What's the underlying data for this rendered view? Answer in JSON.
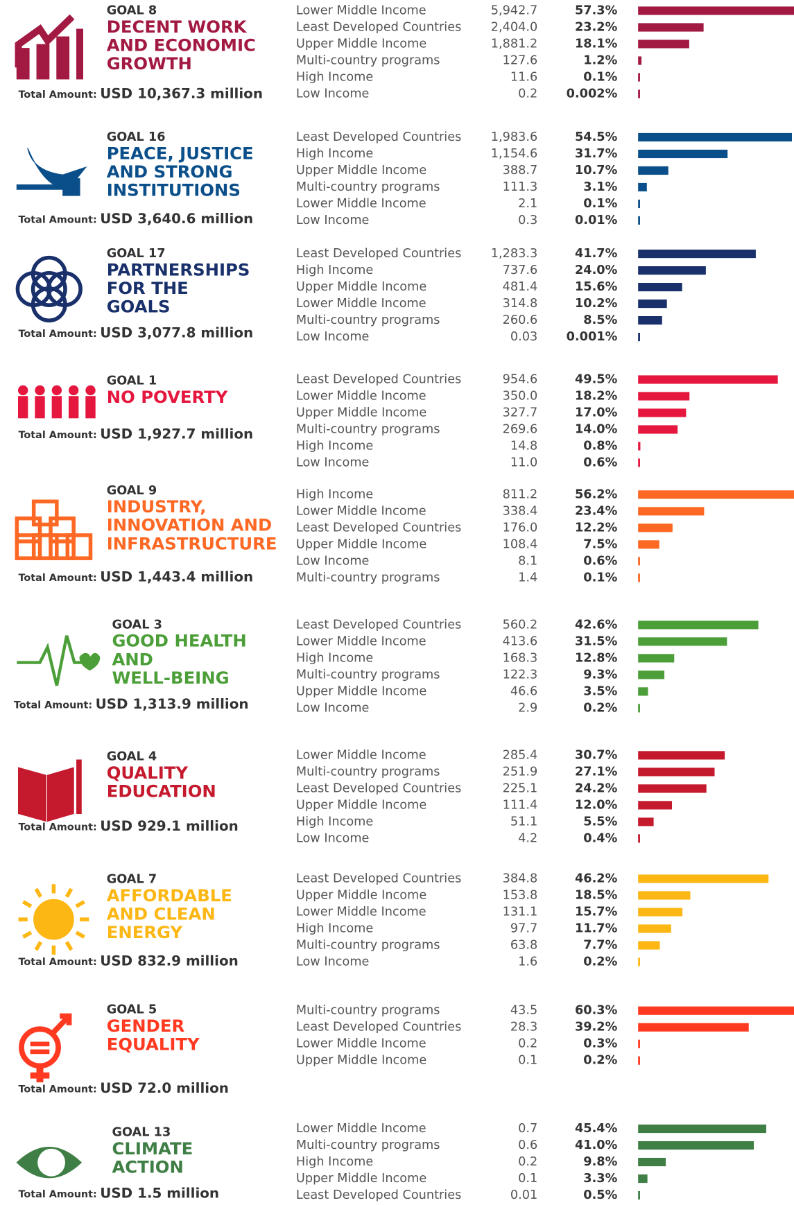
{
  "chart_data": [
    {
      "type": "bar",
      "goal": "GOAL 8",
      "title": [
        "DECENT WORK",
        "AND ECONOMIC",
        "GROWTH"
      ],
      "total_label": "Total Amount:",
      "total": "USD 10,367.3 million",
      "color": "#a21942",
      "xlim": [
        0,
        100
      ],
      "categories": [
        "Lower Middle Income",
        "Least Developed Countries",
        "Upper Middle Income",
        "Multi-country programs",
        "High Income",
        "Low Income"
      ],
      "amounts": [
        "5,942.7",
        "2,404.0",
        "1,881.2",
        "127.6",
        "11.6",
        "0.2"
      ],
      "values": [
        57.3,
        23.2,
        18.1,
        1.2,
        0.1,
        0.002
      ],
      "value_labels": [
        "57.3%",
        "23.2%",
        "18.1%",
        "1.2%",
        "0.1%",
        "0.002%"
      ]
    },
    {
      "type": "bar",
      "goal": "GOAL 16",
      "title": [
        "PEACE, JUSTICE",
        "AND STRONG",
        "INSTITUTIONS"
      ],
      "total_label": "Total Amount:",
      "total": "USD 3,640.6 million",
      "color": "#0a4f8a",
      "xlim": [
        0,
        100
      ],
      "categories": [
        "Least Developed Countries",
        "High Income",
        "Upper Middle Income",
        "Multi-country programs",
        "Lower Middle Income",
        "Low Income"
      ],
      "amounts": [
        "1,983.6",
        "1,154.6",
        "388.7",
        "111.3",
        "2.1",
        "0.3"
      ],
      "values": [
        54.5,
        31.7,
        10.7,
        3.1,
        0.1,
        0.01
      ],
      "value_labels": [
        "54.5%",
        "31.7%",
        "10.7%",
        "3.1%",
        "0.1%",
        "0.01%"
      ]
    },
    {
      "type": "bar",
      "goal": "GOAL 17",
      "title": [
        "PARTNERSHIPS",
        "FOR THE",
        "GOALS"
      ],
      "total_label": "Total Amount:",
      "total": "USD 3,077.8 million",
      "color": "#19306b",
      "xlim": [
        0,
        100
      ],
      "categories": [
        "Least Developed Countries",
        "High Income",
        "Upper Middle Income",
        "Lower Middle Income",
        "Multi-country programs",
        "Low Income"
      ],
      "amounts": [
        "1,283.3",
        "737.6",
        "481.4",
        "314.8",
        "260.6",
        "0.03"
      ],
      "values": [
        41.7,
        24.0,
        15.6,
        10.2,
        8.5,
        0.001
      ],
      "value_labels": [
        "41.7%",
        "24.0%",
        "15.6%",
        "10.2%",
        "8.5%",
        "0.001%"
      ]
    },
    {
      "type": "bar",
      "goal": "GOAL 1",
      "title": [
        "NO POVERTY"
      ],
      "total_label": "Total Amount:",
      "total": "USD 1,927.7 million",
      "color": "#e5173f",
      "xlim": [
        0,
        100
      ],
      "categories": [
        "Least Developed Countries",
        "Lower Middle Income",
        "Upper Middle Income",
        "Multi-country programs",
        "High Income",
        "Low Income"
      ],
      "amounts": [
        "954.6",
        "350.0",
        "327.7",
        "269.6",
        "14.8",
        "11.0"
      ],
      "values": [
        49.5,
        18.2,
        17.0,
        14.0,
        0.8,
        0.6
      ],
      "value_labels": [
        "49.5%",
        "18.2%",
        "17.0%",
        "14.0%",
        "0.8%",
        "0.6%"
      ]
    },
    {
      "type": "bar",
      "goal": "GOAL 9",
      "title": [
        "INDUSTRY,",
        "INNOVATION AND",
        "INFRASTRUCTURE"
      ],
      "total_label": "Total Amount:",
      "total": "USD 1,443.4 million",
      "color": "#fd6925",
      "xlim": [
        0,
        100
      ],
      "categories": [
        "High Income",
        "Lower Middle Income",
        "Least Developed Countries",
        "Upper Middle Income",
        "Low Income",
        "Multi-country programs"
      ],
      "amounts": [
        "811.2",
        "338.4",
        "176.0",
        "108.4",
        "8.1",
        "1.4"
      ],
      "values": [
        56.2,
        23.4,
        12.2,
        7.5,
        0.6,
        0.1
      ],
      "value_labels": [
        "56.2%",
        "23.4%",
        "12.2%",
        "7.5%",
        "0.6%",
        "0.1%"
      ]
    },
    {
      "type": "bar",
      "goal": "GOAL 3",
      "title": [
        "GOOD HEALTH",
        "AND",
        "WELL-BEING"
      ],
      "total_label": "Total Amount:",
      "total": "USD 1,313.9 million",
      "color": "#4c9f38",
      "xlim": [
        0,
        100
      ],
      "categories": [
        "Least Developed Countries",
        "Lower Middle Income",
        "High Income",
        "Multi-country programs",
        "Upper Middle Income",
        "Low Income"
      ],
      "amounts": [
        "560.2",
        "413.6",
        "168.3",
        "122.3",
        "46.6",
        "2.9"
      ],
      "values": [
        42.6,
        31.5,
        12.8,
        9.3,
        3.5,
        0.2
      ],
      "value_labels": [
        "42.6%",
        "31.5%",
        "12.8%",
        "9.3%",
        "3.5%",
        "0.2%"
      ]
    },
    {
      "type": "bar",
      "goal": "GOAL 4",
      "title": [
        "QUALITY",
        "EDUCATION"
      ],
      "total_label": "Total Amount:",
      "total": "USD 929.1 million",
      "color": "#c5192d",
      "xlim": [
        0,
        100
      ],
      "categories": [
        "Lower Middle Income",
        "Multi-country programs",
        "Least Developed Countries",
        "Upper Middle Income",
        "High Income",
        "Low Income"
      ],
      "amounts": [
        "285.4",
        "251.9",
        "225.1",
        "111.4",
        "51.1",
        "4.2"
      ],
      "values": [
        30.7,
        27.1,
        24.2,
        12.0,
        5.5,
        0.4
      ],
      "value_labels": [
        "30.7%",
        "27.1%",
        "24.2%",
        "12.0%",
        "5.5%",
        "0.4%"
      ]
    },
    {
      "type": "bar",
      "goal": "GOAL 7",
      "title": [
        "AFFORDABLE",
        "AND CLEAN",
        "ENERGY"
      ],
      "total_label": "Total Amount:",
      "total": "USD 832.9 million",
      "color": "#fcb714",
      "xlim": [
        0,
        100
      ],
      "categories": [
        "Least Developed Countries",
        "Upper Middle Income",
        "Lower Middle Income",
        "High Income",
        "Multi-country programs",
        "Low Income"
      ],
      "amounts": [
        "384.8",
        "153.8",
        "131.1",
        "97.7",
        "63.8",
        "1.6"
      ],
      "values": [
        46.2,
        18.5,
        15.7,
        11.7,
        7.7,
        0.2
      ],
      "value_labels": [
        "46.2%",
        "18.5%",
        "15.7%",
        "11.7%",
        "7.7%",
        "0.2%"
      ]
    },
    {
      "type": "bar",
      "goal": "GOAL 5",
      "title": [
        "GENDER",
        "EQUALITY"
      ],
      "total_label": "Total Amount:",
      "total": "USD 72.0 million",
      "color": "#ff3a21",
      "xlim": [
        0,
        100
      ],
      "categories": [
        "Multi-country programs",
        "Least Developed Countries",
        "Lower Middle Income",
        "Upper Middle Income"
      ],
      "amounts": [
        "43.5",
        "28.3",
        "0.2",
        "0.1"
      ],
      "values": [
        60.3,
        39.2,
        0.3,
        0.2
      ],
      "value_labels": [
        "60.3%",
        "39.2%",
        "0.3%",
        "0.2%"
      ]
    },
    {
      "type": "bar",
      "goal": "GOAL 13",
      "title": [
        "CLIMATE",
        "ACTION"
      ],
      "total_label": "Total Amount:",
      "total": "USD 1.5 million",
      "color": "#3f7e44",
      "xlim": [
        0,
        100
      ],
      "categories": [
        "Lower Middle Income",
        "Multi-country programs",
        "High Income",
        "Upper Middle Income",
        "Least Developed Countries"
      ],
      "amounts": [
        "0.7",
        "0.6",
        "0.2",
        "0.1",
        "0.01"
      ],
      "values": [
        45.4,
        41.0,
        9.8,
        3.3,
        0.5
      ],
      "value_labels": [
        "45.4%",
        "41.0%",
        "9.8%",
        "3.3%",
        "0.5%"
      ]
    }
  ]
}
